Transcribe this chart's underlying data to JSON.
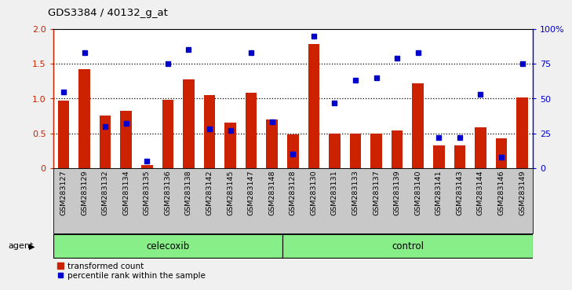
{
  "title": "GDS3384 / 40132_g_at",
  "samples": [
    "GSM283127",
    "GSM283129",
    "GSM283132",
    "GSM283134",
    "GSM283135",
    "GSM283136",
    "GSM283138",
    "GSM283142",
    "GSM283145",
    "GSM283147",
    "GSM283148",
    "GSM283128",
    "GSM283130",
    "GSM283131",
    "GSM283133",
    "GSM283137",
    "GSM283139",
    "GSM283140",
    "GSM283141",
    "GSM283143",
    "GSM283144",
    "GSM283146",
    "GSM283149"
  ],
  "bar_values": [
    0.97,
    1.42,
    0.75,
    0.82,
    0.04,
    0.98,
    1.27,
    1.05,
    0.65,
    1.08,
    0.7,
    0.48,
    1.78,
    0.49,
    0.5,
    0.5,
    0.54,
    1.22,
    0.33,
    0.33,
    0.59,
    0.43,
    1.02
  ],
  "percentile_values": [
    55,
    83,
    30,
    32,
    5,
    75,
    85,
    28,
    27,
    83,
    33,
    10,
    95,
    47,
    63,
    65,
    79,
    83,
    22,
    22,
    53,
    8,
    75
  ],
  "group_labels": [
    "celecoxib",
    "control"
  ],
  "group_sizes": [
    11,
    12
  ],
  "bar_color": "#CC2200",
  "dot_color": "#0000CC",
  "group_bg_color": "#88EE88",
  "xtick_bg_color": "#C8C8C8",
  "ytick_left_color": "#CC2200",
  "ytick_right_color": "#0000CC",
  "ylim_left": [
    0,
    2.0
  ],
  "ylim_right": [
    0,
    100
  ],
  "yticks_left": [
    0,
    0.5,
    1.0,
    1.5,
    2.0
  ],
  "yticks_right": [
    0,
    25,
    50,
    75,
    100
  ],
  "ytick_right_labels": [
    "0",
    "25",
    "50",
    "75",
    "100%"
  ],
  "gridlines_at": [
    0.5,
    1.0,
    1.5
  ],
  "agent_label": "agent",
  "fig_bg_color": "#F0F0F0",
  "plot_bg_color": "#FFFFFF"
}
